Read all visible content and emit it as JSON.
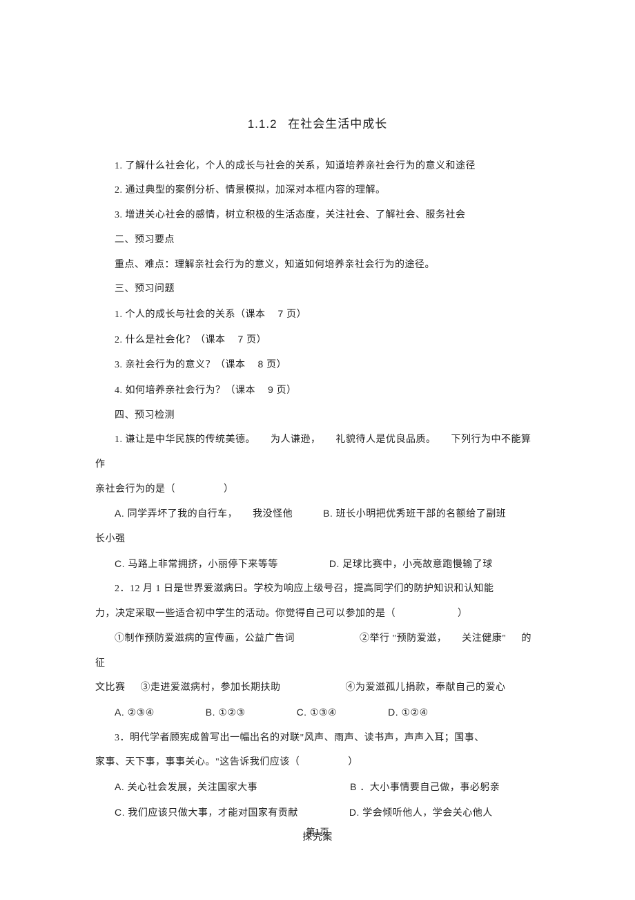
{
  "title_num": "1.1.2",
  "title_text": "在社会生活中成长",
  "goals": {
    "g1": "1. 了解什么社会化，个人的成长与社会的关系，知道培养亲社会行为的意义和途径",
    "g2": "2. 通过典型的案例分析、情景模拟，加深对本框内容的理解。",
    "g3": "3. 增进关心社会的感情，树立积极的生活态度，关注社会、了解社会、服务社会"
  },
  "sec2_head": "二、预习要点",
  "sec2_body": "重点、难点：理解亲社会行为的意义，知道如何培养亲社会行为的途径。",
  "sec3_head": "三、预习问题",
  "q1_a": "1. 个人的成长与社会的关系（课本",
  "q1_b": "7 页）",
  "q2_a": "2. 什么是社会化？（课本",
  "q2_b": "7 页）",
  "q3_a": "3. 亲社会行为的意义？（课本",
  "q3_b": "8 页）",
  "q4_a": "4. 如何培养亲社会行为？（课本",
  "q4_b": "9 页）",
  "sec4_head": "四、预习检测",
  "t1_l1a": "1. 谦让是中华民族的传统美德。",
  "t1_l1b": "为人谦逊，",
  "t1_l1c": "礼貌待人是优良品质。",
  "t1_l1d": "下列行为中不能算作",
  "t1_l2": "亲社会行为的是（",
  "t1_l2b": "）",
  "t1_A": "A.  同学弄坏了我的自行车，",
  "t1_A2": "我没怪他",
  "t1_B": "B.  班长小明把优秀班干部的名额给了副班",
  "t1_B2": "长小强",
  "t1_C": "C.  马路上非常拥挤，小丽停下来等等",
  "t1_D": "D.  足球比赛中，小亮故意跑慢输了球",
  "t2_l1a": "2．12 月 1 日是世界爱滋病日。学校为响应上级号召，提高同学们的防护知识和认知能",
  "t2_l2a": "力，决定采取一些适合初中学生的活动。你觉得自己可以参加的是（",
  "t2_l2b": "）",
  "t2_o1": "①制作预防爱滋病的宣传画，公益广告词",
  "t2_o2": "②举行 \"预防爱滋，",
  "t2_o2b": "关注健康\"",
  "t2_o2c": "的 征",
  "t2_o3a": "文比赛",
  "t2_o3b": "③走进爱滋病村，参加长期扶助",
  "t2_o4": "④为爱滋孤儿捐款，奉献自己的爱心",
  "t2_A": "A.  ②③④",
  "t2_B": "B.  ①②③",
  "t2_C": "C.  ①③④",
  "t2_D": "D.  ①②④",
  "t3_l1": "3．明代学者顾宪成曾写出一幅出名的对联\"风声、雨声、读书声，声声入耳；国事、",
  "t3_l2a": "家事、天下事，事事关心。\"这告诉我们应该（",
  "t3_l2b": "）",
  "t3_A": "A.  关心社会发展，关注国家大事",
  "t3_B": "B  ．大小事情要自己做，事必躬亲",
  "t3_C": "C.  我们应该只做大事，才能对国家有贡献",
  "t3_D": "D.  学会倾听他人，学会关心他人",
  "inquiry": "探究案",
  "footer_a": "第",
  "footer_b": "1",
  "footer_c": "页"
}
